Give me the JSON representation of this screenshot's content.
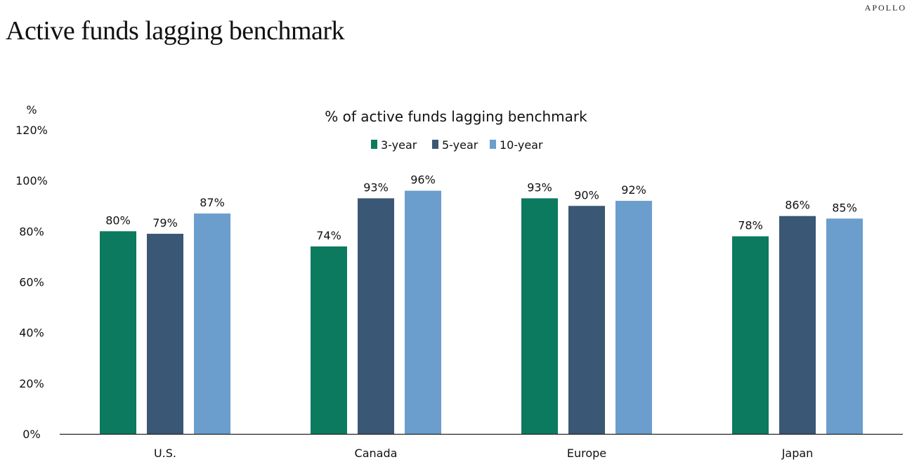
{
  "brand": "APOLLO",
  "page_title": "Active funds lagging benchmark",
  "chart_data": {
    "type": "bar",
    "title": "% of active funds lagging benchmark",
    "ylabel": "%",
    "xlabel": "",
    "ylim": [
      0,
      120
    ],
    "yticks": [
      0,
      20,
      40,
      60,
      80,
      100,
      120
    ],
    "ytick_labels": [
      "0%",
      "20%",
      "40%",
      "60%",
      "80%",
      "100%",
      "120%"
    ],
    "categories": [
      "U.S.",
      "Canada",
      "Europe",
      "Japan"
    ],
    "legend_position": "top-center",
    "grid": false,
    "series": [
      {
        "name": "3-year",
        "color": "#0b7a5f",
        "values": [
          80,
          74,
          93,
          78
        ],
        "labels": [
          "80%",
          "74%",
          "93%",
          "78%"
        ]
      },
      {
        "name": "5-year",
        "color": "#3a5775",
        "values": [
          79,
          93,
          90,
          86
        ],
        "labels": [
          "79%",
          "93%",
          "90%",
          "86%"
        ]
      },
      {
        "name": "10-year",
        "color": "#6b9ecd",
        "values": [
          87,
          96,
          92,
          85
        ],
        "labels": [
          "87%",
          "96%",
          "92%",
          "85%"
        ]
      }
    ]
  }
}
